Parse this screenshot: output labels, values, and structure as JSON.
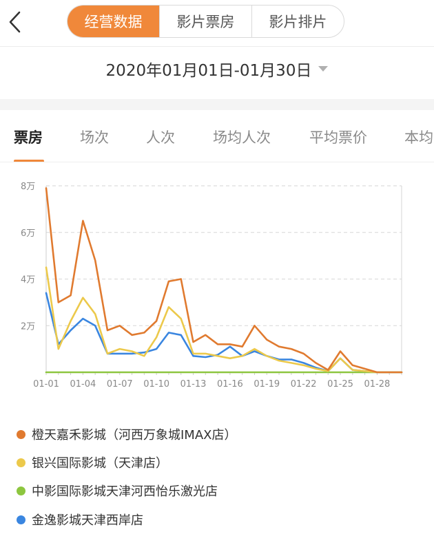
{
  "nav": {
    "back_icon": "chevron-left-icon",
    "segments": [
      {
        "label": "经营数据",
        "active": true
      },
      {
        "label": "影片票房",
        "active": false
      },
      {
        "label": "影片排片",
        "active": false
      }
    ]
  },
  "date_range": {
    "label": "2020年01月01日-01月30日",
    "caret_icon": "caret-down-icon"
  },
  "metric_tabs": [
    {
      "label": "票房",
      "active": true
    },
    {
      "label": "场次",
      "active": false
    },
    {
      "label": "人次",
      "active": false
    },
    {
      "label": "场均人次",
      "active": false
    },
    {
      "label": "平均票价",
      "active": false
    },
    {
      "label": "本均",
      "active": false
    }
  ],
  "colors": {
    "accent": "#f0883a"
  },
  "chart_data": {
    "type": "line",
    "x": [
      "01-01",
      "01-02",
      "01-03",
      "01-04",
      "01-05",
      "01-06",
      "01-07",
      "01-08",
      "01-09",
      "01-10",
      "01-11",
      "01-12",
      "01-13",
      "01-14",
      "01-15",
      "01-16",
      "01-17",
      "01-18",
      "01-19",
      "01-20",
      "01-21",
      "01-22",
      "01-23",
      "01-24",
      "01-25",
      "01-26",
      "01-27",
      "01-28",
      "01-29",
      "01-30"
    ],
    "x_tick_labels": [
      "01-01",
      "01-04",
      "01-07",
      "01-10",
      "01-13",
      "01-16",
      "01-19",
      "01-22",
      "01-25",
      "01-28"
    ],
    "y_tick_labels": [
      "8万",
      "6万",
      "4万",
      "2万"
    ],
    "y_tick_values": [
      80000,
      60000,
      40000,
      20000
    ],
    "ylim": [
      0,
      80000
    ],
    "grid": true,
    "legend_position": "bottom",
    "series": [
      {
        "name": "橙天嘉禾影城（河西万象城IMAX店）",
        "color": "#e07a2f",
        "values": [
          79000,
          30000,
          33000,
          65000,
          48000,
          18000,
          20000,
          16000,
          17000,
          22000,
          39000,
          40000,
          13000,
          16000,
          12000,
          12000,
          11000,
          20000,
          14000,
          11000,
          10000,
          8000,
          4000,
          1000,
          9000,
          3000,
          1500,
          0,
          0,
          0
        ]
      },
      {
        "name": "银兴国际影城（天津店）",
        "color": "#ecc94b",
        "values": [
          45000,
          10000,
          22000,
          32000,
          25000,
          8000,
          10000,
          9000,
          7000,
          15000,
          28000,
          23000,
          8000,
          8000,
          7000,
          6000,
          7000,
          10000,
          7000,
          5000,
          4000,
          3000,
          1500,
          500,
          6000,
          1000,
          500,
          0,
          0,
          0
        ]
      },
      {
        "name": "中影国际影城天津河西怡乐激光店",
        "color": "#8dc63f",
        "values": [
          0,
          0,
          0,
          0,
          0,
          0,
          0,
          0,
          0,
          0,
          0,
          0,
          0,
          0,
          0,
          0,
          0,
          0,
          0,
          0,
          0,
          0,
          0,
          0,
          0,
          0,
          0,
          0,
          0,
          0
        ]
      },
      {
        "name": "金逸影城天津西岸店",
        "color": "#3a86e0",
        "values": [
          34000,
          12000,
          18000,
          23000,
          20000,
          8000,
          8000,
          8000,
          8500,
          10000,
          17000,
          16000,
          7000,
          6500,
          7500,
          11000,
          7000,
          9000,
          7000,
          5500,
          5500,
          4000,
          2000,
          500,
          6000,
          1000,
          500,
          0,
          0,
          0
        ]
      }
    ]
  }
}
